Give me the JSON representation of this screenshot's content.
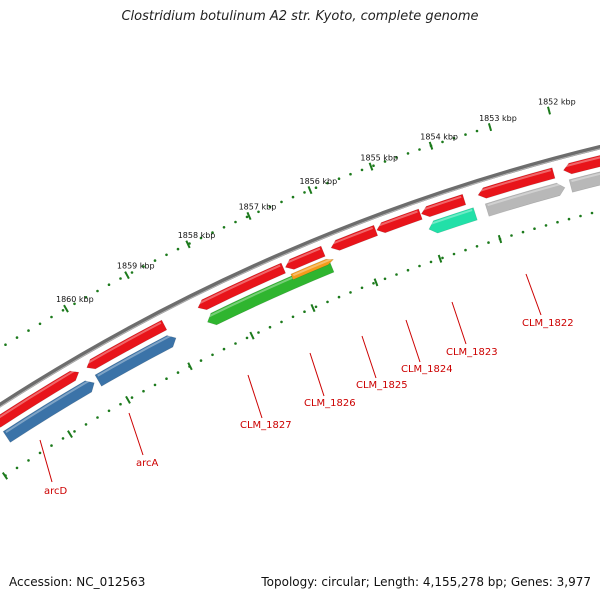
{
  "title": "Clostridium botulinum A2 str. Kyoto, complete genome",
  "ruler_labels": [
    "1852 kbp",
    "1853 kbp",
    "1854 kbp",
    "1855 kbp",
    "1856 kbp",
    "1857 kbp",
    "1858 kbp",
    "1859 kbp",
    "1860 kbp"
  ],
  "gene_labels": [
    "arcD",
    "arcA",
    "CLM_1827",
    "CLM_1826",
    "CLM_1825",
    "CLM_1824",
    "CLM_1823",
    "CLM_1822"
  ],
  "footer": {
    "accession": "Accession: NC_012563",
    "summary": "Topology: circular; Length: 4,155,278 bp; Genes: 3,977"
  },
  "colors": {
    "cds": "#e8141a",
    "arc_genes": "#3b73a8",
    "clm_1827": "#2fb52f",
    "clm_1826": "#f59b1a",
    "clm_1823": "#22e0a8",
    "clm_1822": "#b8b8b8",
    "backbone": "#777777",
    "ticks": "#1c7a1c",
    "label": "#cc0000"
  }
}
